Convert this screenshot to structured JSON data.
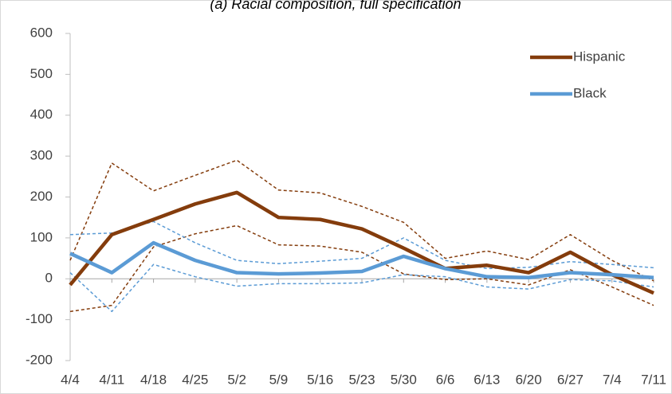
{
  "chart_data": {
    "type": "line",
    "title": "(a) Racial composition, full specification",
    "categories": [
      "4/4",
      "4/11",
      "4/18",
      "4/25",
      "5/2",
      "5/9",
      "5/16",
      "5/23",
      "5/30",
      "6/6",
      "6/13",
      "6/20",
      "6/27",
      "7/4",
      "7/11"
    ],
    "series": [
      {
        "color": "#843c0c",
        "dashed": true,
        "values": [
          45,
          283,
          215,
          253,
          290,
          217,
          210,
          177,
          138,
          50,
          68,
          47,
          108,
          45,
          -5
        ]
      },
      {
        "color": "#843c0c",
        "dashed": true,
        "values": [
          -80,
          -65,
          78,
          110,
          130,
          83,
          80,
          65,
          12,
          -2,
          0,
          -15,
          22,
          -20,
          -65
        ]
      },
      {
        "color": "#5b9bd5",
        "dashed": true,
        "values": [
          108,
          112,
          140,
          88,
          45,
          37,
          43,
          50,
          100,
          45,
          25,
          28,
          42,
          35,
          27
        ]
      },
      {
        "color": "#5b9bd5",
        "dashed": true,
        "values": [
          15,
          -80,
          35,
          5,
          -18,
          -12,
          -12,
          -10,
          10,
          5,
          -20,
          -25,
          -2,
          -5,
          -20
        ]
      },
      {
        "name": "Hispanic",
        "color": "#843c0c",
        "values": [
          -15,
          108,
          145,
          183,
          211,
          150,
          145,
          122,
          75,
          25,
          33,
          15,
          65,
          10,
          -35
        ]
      },
      {
        "name": "Black",
        "color": "#5b9bd5",
        "values": [
          62,
          15,
          88,
          45,
          15,
          12,
          14,
          18,
          55,
          25,
          5,
          3,
          15,
          10,
          3
        ]
      }
    ],
    "ylim": [
      -200,
      600
    ],
    "yticks": [
      -200,
      -100,
      0,
      100,
      200,
      300,
      400,
      500,
      600
    ],
    "grid": false,
    "legend": "upper right"
  }
}
